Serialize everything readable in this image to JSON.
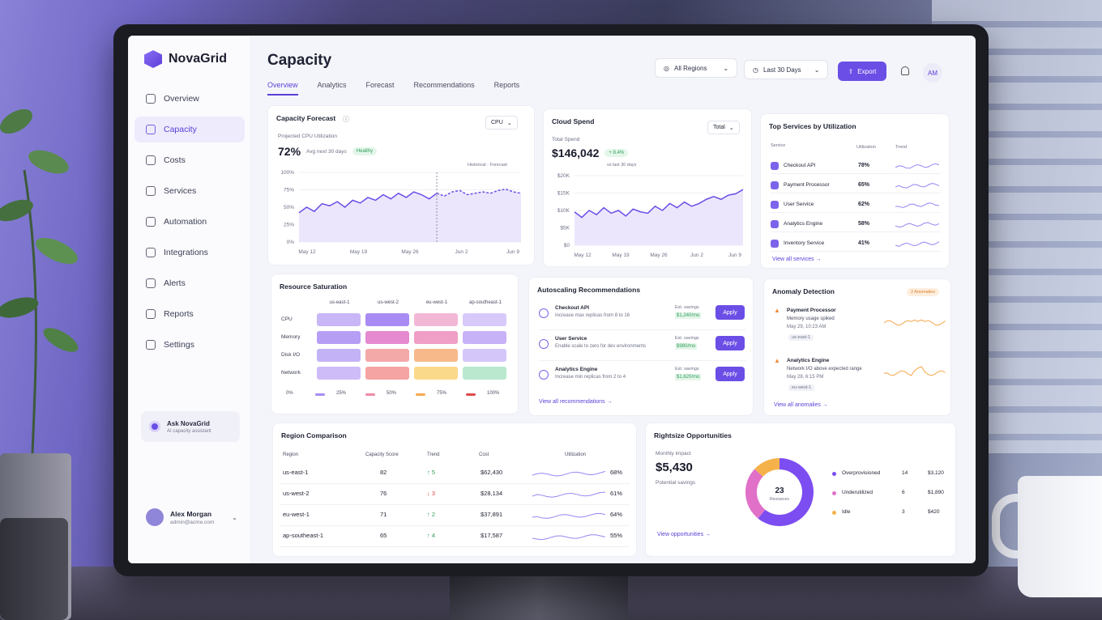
{
  "app": {
    "name": "NovaGrid"
  },
  "sidebar": {
    "items": [
      {
        "label": "Overview",
        "icon": "home-icon"
      },
      {
        "label": "Capacity",
        "icon": "capacity-icon",
        "active": true
      },
      {
        "label": "Costs",
        "icon": "costs-icon"
      },
      {
        "label": "Services",
        "icon": "services-icon"
      },
      {
        "label": "Automation",
        "icon": "automation-icon"
      },
      {
        "label": "Integrations",
        "icon": "integrations-icon"
      },
      {
        "label": "Alerts",
        "icon": "bell-icon"
      },
      {
        "label": "Reports",
        "icon": "reports-icon"
      },
      {
        "label": "Settings",
        "icon": "gear-icon"
      }
    ],
    "ask": {
      "title": "Ask NovaGrid",
      "subtitle": "AI capacity assistant"
    },
    "user": {
      "name": "Alex Morgan",
      "email": "admin@acme.com"
    }
  },
  "header": {
    "title": "Capacity",
    "tabs": [
      "Overview",
      "Analytics",
      "Forecast",
      "Recommendations",
      "Reports"
    ],
    "region": "All Regions",
    "range": "Last 30 Days",
    "export": "Export",
    "avatar": "AM"
  },
  "forecast": {
    "title": "Capacity Forecast",
    "selector": "CPU",
    "subtitle": "Projected CPU Utilization",
    "value": "72%",
    "note": "Avg next 30 days",
    "badge": "Healthy",
    "legend": [
      "Historical",
      "Forecast"
    ],
    "yticks": [
      "100%",
      "75%",
      "50%",
      "25%",
      "0%"
    ],
    "xticks": [
      "May 12",
      "May 19",
      "May 26",
      "Jun 2",
      "Jun 9"
    ]
  },
  "spend": {
    "title": "Cloud Spend",
    "selector": "Total",
    "label": "Total Spend",
    "value": "$146,042",
    "delta": "+ 8.4%",
    "delta_note": "vs last 30 days",
    "yticks": [
      "$20K",
      "$15K",
      "$10K",
      "$5K",
      "$0"
    ],
    "xticks": [
      "May 12",
      "May 19",
      "May 26",
      "Jun 2",
      "Jun 9"
    ]
  },
  "top_services": {
    "title": "Top Services by Utilization",
    "headers": [
      "Service",
      "Utilization",
      "Trend"
    ],
    "rows": [
      {
        "name": "Checkout API",
        "value": "78%"
      },
      {
        "name": "Payment Processor",
        "value": "65%"
      },
      {
        "name": "User Service",
        "value": "62%"
      },
      {
        "name": "Analytics Engine",
        "value": "58%"
      },
      {
        "name": "Inventory Service",
        "value": "41%"
      }
    ],
    "link": "View all services →"
  },
  "saturation": {
    "title": "Resource Saturation",
    "regions": [
      "us-east-1",
      "us-west-2",
      "eu-west-1",
      "ap-southeast-1"
    ],
    "rows": [
      "CPU",
      "Memory",
      "Disk I/O",
      "Network"
    ],
    "legend": [
      "0%",
      "25%",
      "50%",
      "75%",
      "100%"
    ],
    "cells": [
      [
        "#c9b6f7",
        "#a88cf3",
        "#f3b7d6",
        "#d8c9fb"
      ],
      [
        "#b79ef5",
        "#e58ad0",
        "#ef9ec5",
        "#c8b2f7"
      ],
      [
        "#c4b2f6",
        "#f4a9a9",
        "#f8b98a",
        "#d5c6fa"
      ],
      [
        "#cdbcf8",
        "#f6a3a3",
        "#fbd98a",
        "#b9e8cf"
      ]
    ],
    "legend_colors": [
      "#a88cf3",
      "#f08aa6",
      "#f6a94f",
      "#e04a4a"
    ]
  },
  "autoscaling": {
    "title": "Autoscaling Recommendations",
    "items": [
      {
        "name": "Checkout API",
        "desc": "Increase max replicas from 8 to 16",
        "savings_label": "Est. savings",
        "savings": "$1,240/mo",
        "action": "Apply"
      },
      {
        "name": "User Service",
        "desc": "Enable scale to zero for dev environments",
        "savings_label": "Est. savings",
        "savings": "$980/mo",
        "action": "Apply"
      },
      {
        "name": "Analytics Engine",
        "desc": "Increase min replicas from 2 to 4",
        "savings_label": "Est. savings",
        "savings": "$1,620/mo",
        "action": "Apply"
      }
    ],
    "link": "View all recommendations →"
  },
  "anomaly": {
    "title": "Anomaly Detection",
    "badge": "2 Anomalies",
    "items": [
      {
        "name": "Payment Processor",
        "desc": "Memory usage spiked",
        "time": "May 29, 10:23 AM",
        "region": "us-east-1"
      },
      {
        "name": "Analytics Engine",
        "desc": "Network I/O above expected range",
        "time": "May 28, 6:15 PM",
        "region": "eu-west-1"
      }
    ],
    "link": "View all anomalies →"
  },
  "regions": {
    "title": "Region Comparison",
    "headers": [
      "Region",
      "Capacity Score",
      "Trend",
      "Cost",
      "Utilization"
    ],
    "rows": [
      {
        "region": "us-east-1",
        "score": "82",
        "trend": "↑ 5",
        "dir": "up",
        "cost": "$62,430",
        "util": "68%"
      },
      {
        "region": "us-west-2",
        "score": "76",
        "trend": "↓ 3",
        "dir": "down",
        "cost": "$28,134",
        "util": "61%"
      },
      {
        "region": "eu-west-1",
        "score": "71",
        "trend": "↑ 2",
        "dir": "up",
        "cost": "$37,891",
        "util": "64%"
      },
      {
        "region": "ap-southeast-1",
        "score": "65",
        "trend": "↑ 4",
        "dir": "up",
        "cost": "$17,587",
        "util": "55%"
      }
    ]
  },
  "rightsize": {
    "title": "Rightsize Opportunities",
    "label": "Monthly impact",
    "value": "$5,430",
    "note": "Potential savings",
    "donut_value": "23",
    "donut_label": "Resources",
    "segments": [
      {
        "name": "Overprovisioned",
        "count": "14",
        "amount": "$3,120",
        "color": "#7c4df0",
        "n": 14
      },
      {
        "name": "Underutilized",
        "count": "6",
        "amount": "$1,890",
        "color": "#e070c8",
        "n": 6
      },
      {
        "name": "Idle",
        "count": "3",
        "amount": "$420",
        "color": "#f5b24a",
        "n": 3
      }
    ],
    "link": "View opportunities →"
  },
  "colors": {
    "accent": "#6b4ee6",
    "up": "#2f9e5a",
    "down": "#e04a4a"
  }
}
